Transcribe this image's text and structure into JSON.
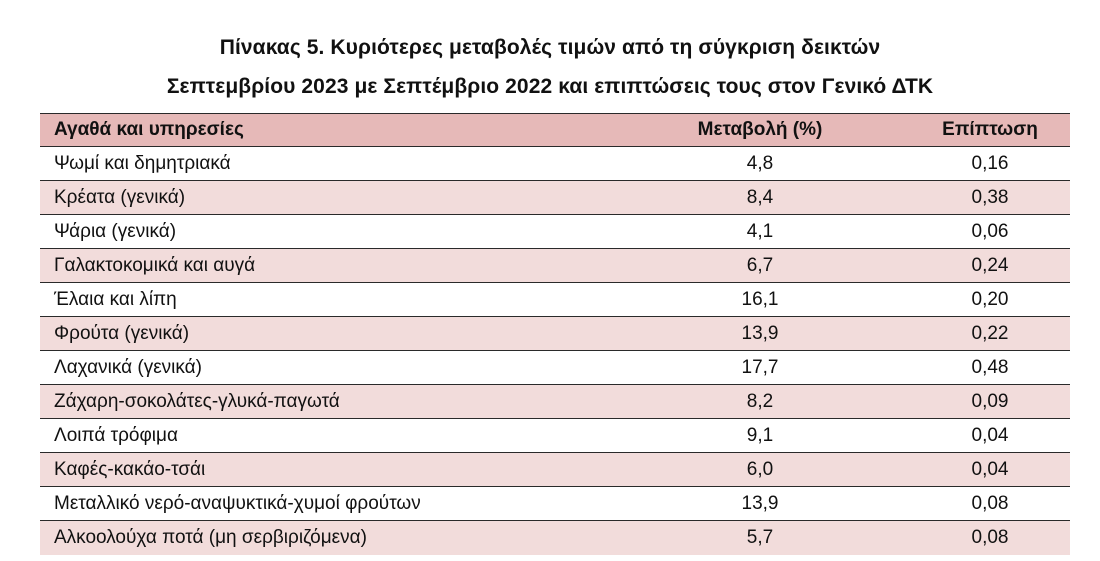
{
  "title": {
    "line1": "Πίνακας  5. Κυριότερες μεταβολές τιμών από τη σύγκριση δεικτών",
    "line2": "Σεπτεμβρίου 2023 με Σεπτέμβριο 2022 και επιπτώσεις τους στον Γενικό ΔΤΚ"
  },
  "table": {
    "headers": {
      "name": "Αγαθά και υπηρεσίες",
      "change": "Μεταβολή (%)",
      "impact": "Επίπτωση"
    },
    "rows": [
      {
        "name": "Ψωμί και δημητριακά",
        "change": "4,8",
        "impact": "0,16"
      },
      {
        "name": "Κρέατα (γενικά)",
        "change": "8,4",
        "impact": "0,38"
      },
      {
        "name": "Ψάρια (γενικά)",
        "change": "4,1",
        "impact": "0,06"
      },
      {
        "name": "Γαλακτοκομικά και αυγά",
        "change": "6,7",
        "impact": "0,24"
      },
      {
        "name": "Έλαια και λίπη",
        "change": "16,1",
        "impact": "0,20"
      },
      {
        "name": "Φρούτα (γενικά)",
        "change": "13,9",
        "impact": "0,22"
      },
      {
        "name": "Λαχανικά (γενικά)",
        "change": "17,7",
        "impact": "0,48"
      },
      {
        "name": "Ζάχαρη-σοκολάτες-γλυκά-παγωτά",
        "change": "8,2",
        "impact": "0,09"
      },
      {
        "name": "Λοιπά τρόφιμα",
        "change": "9,1",
        "impact": "0,04"
      },
      {
        "name": "Καφές-κακάο-τσάι",
        "change": "6,0",
        "impact": "0,04"
      },
      {
        "name": "Μεταλλικό νερό-αναψυκτικά-χυμοί φρούτων",
        "change": "13,9",
        "impact": "0,08"
      },
      {
        "name": "Αλκοολούχα ποτά (μη σερβιριζόμενα)",
        "change": "5,7",
        "impact": "0,08"
      }
    ]
  },
  "colors": {
    "header_bg": "#e6b9b8",
    "alt_row_bg": "#f2dcdb",
    "plain_row_bg": "#ffffff",
    "rule": "#2a2a2a"
  }
}
